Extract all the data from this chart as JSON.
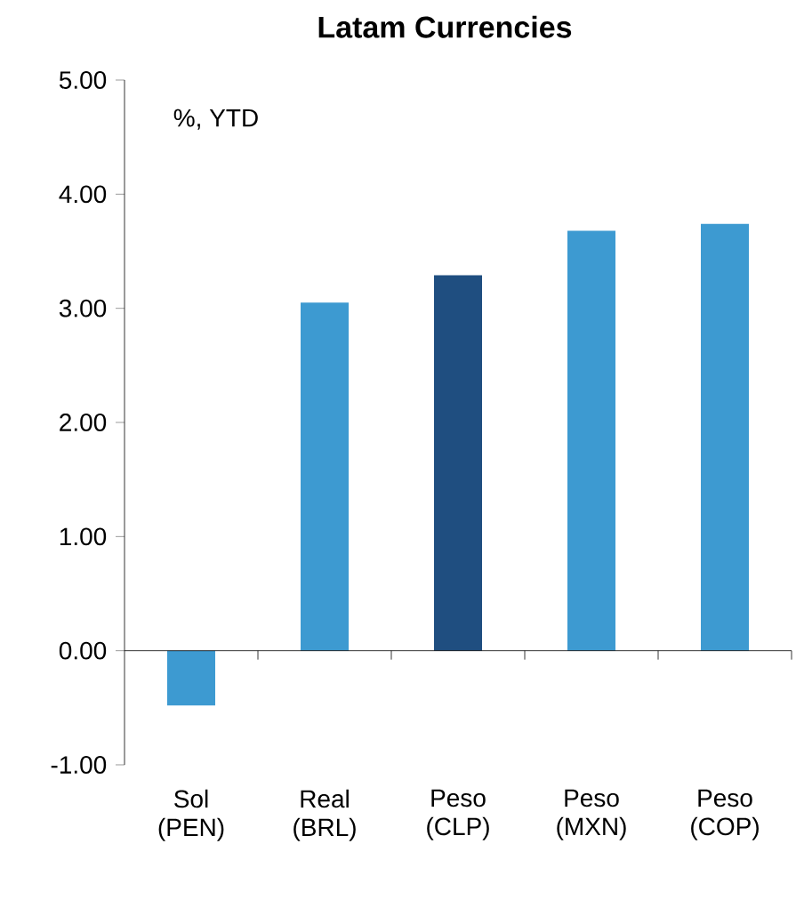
{
  "chart_data": {
    "type": "bar",
    "title": "Latam Currencies",
    "categories": [
      "Sol (PEN)",
      "Real (BRL)",
      "Peso (CLP)",
      "Peso (MXN)",
      "Peso (COP)"
    ],
    "values": [
      -0.48,
      3.05,
      3.29,
      3.68,
      3.74
    ],
    "colors": [
      "#3d9ad1",
      "#3d9ad1",
      "#1f4e80",
      "#3d9ad1",
      "#3d9ad1"
    ],
    "ylim": [
      -1,
      5
    ],
    "yticks": [
      {
        "value": -1,
        "label": "-1.00"
      },
      {
        "value": 0,
        "label": "0.00"
      },
      {
        "value": 1,
        "label": "1.00"
      },
      {
        "value": 2,
        "label": "2.00"
      },
      {
        "value": 3,
        "label": "3.00"
      },
      {
        "value": 4,
        "label": "4.00"
      },
      {
        "value": 5,
        "label": "5.00"
      }
    ],
    "annotations": [
      "%, YTD"
    ]
  }
}
